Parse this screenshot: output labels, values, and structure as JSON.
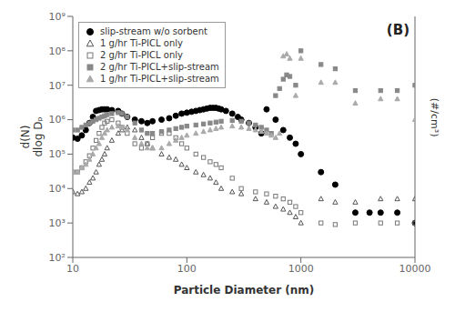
{
  "chart_data": {
    "type": "scatter",
    "annotations": [
      "(B)"
    ],
    "x_label": "Particle Diameter (nm)",
    "y_label": "d(N)\ndlog Dₚ",
    "y2label": "(#/cm³)",
    "log": true,
    "grid": false,
    "legend": "upper left",
    "xlim": [
      10,
      10000
    ],
    "xticks": [
      10,
      100,
      1000,
      10000
    ],
    "ylim": [
      100,
      1000000000
    ],
    "yticks": [
      {
        "value": 100,
        "label": "10²"
      },
      {
        "value": 1000,
        "label": "10³"
      },
      {
        "value": 10000,
        "label": "10⁴"
      },
      {
        "value": 100000,
        "label": "10⁵"
      },
      {
        "value": 1000000,
        "label": "10⁶"
      },
      {
        "value": 10000000,
        "label": "10⁷"
      },
      {
        "value": 100000000,
        "label": "10⁸"
      },
      {
        "value": 1000000000,
        "label": "10⁹"
      }
    ],
    "series": [
      {
        "name": "slip-stream w/o sorbent",
        "marker": "circle",
        "color": "#000000",
        "x": [
          10,
          11,
          12,
          13,
          14,
          15,
          16,
          17,
          18,
          19,
          20,
          22,
          25,
          27,
          30,
          35,
          40,
          45,
          50,
          60,
          70,
          80,
          90,
          100,
          110,
          120,
          130,
          140,
          150,
          160,
          170,
          180,
          190,
          200,
          220,
          250,
          280,
          300,
          350,
          400,
          450,
          500,
          600,
          700,
          800,
          900,
          1000,
          1500,
          2000,
          3000,
          4000,
          5000,
          7000,
          10000
        ],
        "values": [
          300000.0,
          280000.0,
          350000.0,
          500000.0,
          800000.0,
          1200000.0,
          1800000.0,
          1900000.0,
          2000000.0,
          2000000.0,
          2000000.0,
          1900000.0,
          1800000.0,
          1500000.0,
          1200000.0,
          1000000.0,
          900000.0,
          800000.0,
          900000.0,
          1000000.0,
          1100000.0,
          1300000.0,
          1500000.0,
          1600000.0,
          1700000.0,
          1800000.0,
          1900000.0,
          2000000.0,
          2100000.0,
          2200000.0,
          2200000.0,
          2200000.0,
          2100000.0,
          2000000.0,
          1800000.0,
          1500000.0,
          1200000.0,
          1000000.0,
          800000.0,
          600000.0,
          400000.0,
          2000000.0,
          1000000.0,
          500000.0,
          300000.0,
          200000.0,
          100000.0,
          30000.0,
          13000.0,
          2000.0,
          2000.0,
          2000.0,
          2000.0,
          1000.0
        ]
      },
      {
        "name": "1 g/hr Ti-PICL only",
        "marker": "triangle-open",
        "color": "#555555",
        "x": [
          10,
          11,
          12,
          13,
          14,
          15,
          16,
          17,
          18,
          19,
          20,
          22,
          25,
          27,
          30,
          35,
          40,
          45,
          50,
          60,
          70,
          80,
          90,
          100,
          120,
          140,
          160,
          180,
          200,
          250,
          300,
          400,
          500,
          600,
          700,
          800,
          900,
          1000,
          1500,
          2000,
          3000,
          5000,
          7000,
          10000
        ],
        "values": [
          8000.0,
          7000.0,
          8000.0,
          10000.0,
          15000.0,
          20000.0,
          30000.0,
          50000.0,
          70000.0,
          100000.0,
          150000.0,
          250000.0,
          400000.0,
          500000.0,
          600000.0,
          500000.0,
          300000.0,
          200000.0,
          150000.0,
          100000.0,
          80000.0,
          70000.0,
          50000.0,
          40000.0,
          30000.0,
          25000.0,
          20000.0,
          15000.0,
          10000.0,
          8000.0,
          7000.0,
          5000.0,
          4000.0,
          3000.0,
          2500.0,
          2000.0,
          1500.0,
          1000.0,
          5000.0,
          4000.0,
          4000.0,
          5000.0,
          5000.0,
          5000.0
        ]
      },
      {
        "name": "2 g/hr Ti-PICL only",
        "marker": "square-open",
        "color": "#777777",
        "x": [
          10,
          11,
          12,
          13,
          14,
          15,
          16,
          17,
          18,
          19,
          20,
          22,
          25,
          27,
          30,
          35,
          40,
          45,
          50,
          60,
          70,
          80,
          90,
          100,
          120,
          140,
          160,
          180,
          200,
          250,
          300,
          400,
          500,
          600,
          700,
          800,
          900,
          1000,
          1500,
          2000,
          3000,
          5000,
          7000,
          10000
        ],
        "values": [
          30000.0,
          30000.0,
          40000.0,
          60000.0,
          90000.0,
          150000.0,
          250000.0,
          400000.0,
          600000.0,
          800000.0,
          900000.0,
          1000000.0,
          800000.0,
          600000.0,
          400000.0,
          200000.0,
          150000.0,
          200000.0,
          300000.0,
          400000.0,
          400000.0,
          300000.0,
          200000.0,
          150000.0,
          100000.0,
          80000.0,
          60000.0,
          50000.0,
          40000.0,
          20000.0,
          10000.0,
          8000.0,
          7000.0,
          6000.0,
          5000.0,
          4000.0,
          3000.0,
          2000.0,
          1000.0,
          900.0,
          1000.0,
          1000.0,
          1000.0,
          1000.0
        ]
      },
      {
        "name": "2 g/hr Ti-PICL+slip-stream",
        "marker": "square",
        "color": "#888888",
        "x": [
          10,
          11,
          12,
          13,
          14,
          15,
          16,
          17,
          18,
          19,
          20,
          22,
          25,
          27,
          30,
          35,
          40,
          45,
          50,
          60,
          70,
          80,
          90,
          100,
          120,
          140,
          160,
          180,
          200,
          250,
          300,
          350,
          400,
          450,
          500,
          550,
          600,
          650,
          700,
          750,
          800,
          900,
          1000,
          1500,
          2000,
          3000,
          5000,
          7000,
          10000
        ],
        "values": [
          500000.0,
          500000.0,
          600000.0,
          700000.0,
          800000.0,
          900000.0,
          1000000.0,
          1100000.0,
          1200000.0,
          1300000.0,
          1400000.0,
          1500000.0,
          1600000.0,
          1500000.0,
          1200000.0,
          800000.0,
          500000.0,
          400000.0,
          400000.0,
          450000.0,
          500000.0,
          550000.0,
          600000.0,
          650000.0,
          700000.0,
          750000.0,
          800000.0,
          850000.0,
          900000.0,
          950000.0,
          900000.0,
          800000.0,
          700000.0,
          600000.0,
          500000.0,
          400000.0,
          5000000.0,
          8000000.0,
          15000000.0,
          20000000.0,
          18000000.0,
          10000000.0,
          100000000.0,
          40000000.0,
          30000000.0,
          7000000.0,
          7000000.0,
          7000000.0,
          10000000.0
        ]
      },
      {
        "name": "1 g/hr Ti-PICL+slip-stream",
        "marker": "triangle",
        "color": "#aaaaaa",
        "x": [
          10,
          11,
          12,
          13,
          14,
          15,
          16,
          17,
          18,
          19,
          20,
          22,
          25,
          27,
          30,
          35,
          40,
          45,
          50,
          60,
          70,
          80,
          90,
          100,
          120,
          140,
          160,
          180,
          200,
          250,
          300,
          350,
          400,
          450,
          500,
          550,
          600,
          650,
          700,
          750,
          800,
          900,
          1000,
          1500,
          2000,
          3000,
          5000,
          7000,
          10000
        ],
        "values": [
          30000.0,
          30000.0,
          40000.0,
          50000.0,
          70000.0,
          100000.0,
          150000.0,
          200000.0,
          300000.0,
          400000.0,
          500000.0,
          600000.0,
          650000.0,
          600000.0,
          500000.0,
          300000.0,
          200000.0,
          150000.0,
          150000.0,
          150000.0,
          200000.0,
          250000.0,
          300000.0,
          350000.0,
          400000.0,
          450000.0,
          500000.0,
          550000.0,
          600000.0,
          650000.0,
          600000.0,
          550000.0,
          500000.0,
          450000.0,
          400000.0,
          350000.0,
          300000.0,
          400000.0,
          70000000.0,
          80000000.0,
          60000000.0,
          5000000.0,
          60000000.0,
          12000000.0,
          12000000.0,
          3000000.0,
          4000000.0,
          4000000.0,
          1000000.0
        ]
      }
    ]
  }
}
